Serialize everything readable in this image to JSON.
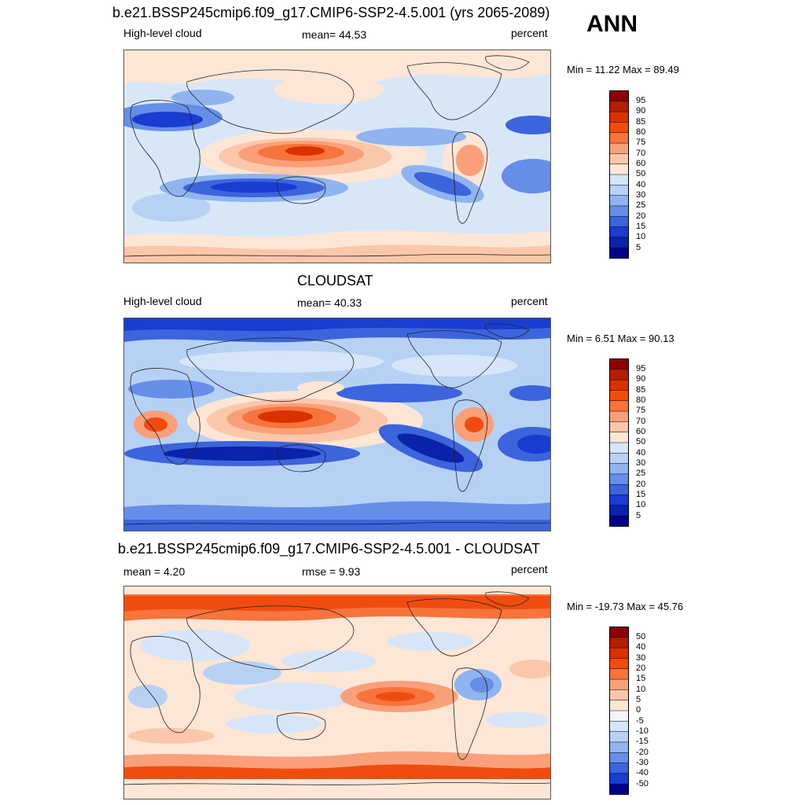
{
  "season": "ANN",
  "panels": [
    {
      "title": "b.e21.BSSP245cmip6.f09_g17.CMIP6-SSP2-4.5.001 (yrs 2065-2089)",
      "left": "High-level cloud",
      "center": "mean=  44.53",
      "right": "percent",
      "minmax": "Min =  11.22 Max =  89.49",
      "colorbar_labels": [
        "95",
        "90",
        "85",
        "80",
        "75",
        "70",
        "60",
        "50",
        "40",
        "30",
        "25",
        "20",
        "15",
        "10",
        "5"
      ]
    },
    {
      "title": "CLOUDSAT",
      "left": "High-level cloud",
      "center": "mean=  40.33",
      "right": "percent",
      "minmax": "Min =   6.51 Max =  90.13",
      "colorbar_labels": [
        "95",
        "90",
        "85",
        "80",
        "75",
        "70",
        "60",
        "50",
        "40",
        "30",
        "25",
        "20",
        "15",
        "10",
        "5"
      ]
    },
    {
      "title": "b.e21.BSSP245cmip6.f09_g17.CMIP6-SSP2-4.5.001 - CLOUDSAT",
      "left": "mean =   4.20",
      "center": "rmse =   9.93",
      "right": "percent",
      "minmax": "Min = -19.73 Max =  45.76",
      "colorbar_labels": [
        "50",
        "40",
        "30",
        "20",
        "15",
        "10",
        "5",
        "0",
        "-5",
        "-10",
        "-15",
        "-20",
        "-30",
        "-40",
        "-50"
      ]
    }
  ],
  "colors": {
    "seq": [
      "#8b0000",
      "#b21e00",
      "#d93200",
      "#f14c10",
      "#f7743c",
      "#f9a07a",
      "#fbc7aa",
      "#fde6d6",
      "#d6e6f8",
      "#b7d1f5",
      "#90b4f0",
      "#668ee8",
      "#3c64dc",
      "#1a3cd0",
      "#0b22aa",
      "#00008a"
    ],
    "div": [
      "#8b0000",
      "#b21e00",
      "#d93200",
      "#f14c10",
      "#f7743c",
      "#f9a07a",
      "#fbc7aa",
      "#fde6d6",
      "#f2f4fb",
      "#d6e6f8",
      "#b7d1f5",
      "#90b4f0",
      "#668ee8",
      "#3c64dc",
      "#1a3cd0",
      "#00008a"
    ]
  }
}
